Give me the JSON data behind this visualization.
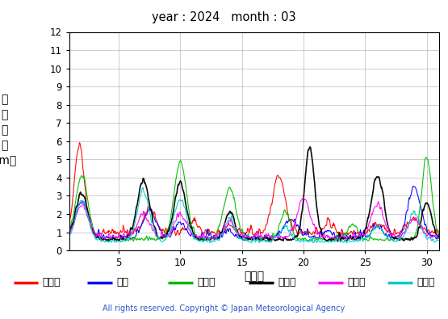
{
  "title": "year : 2024   month : 03",
  "xlabel": "（日）",
  "ylabel_chars": [
    "有",
    "義",
    "波",
    "高",
    "（m）"
  ],
  "xlim": [
    1,
    31
  ],
  "ylim": [
    0,
    12
  ],
  "yticks": [
    0,
    1,
    2,
    3,
    4,
    5,
    6,
    7,
    8,
    9,
    10,
    11,
    12
  ],
  "xticks": [
    5,
    10,
    15,
    20,
    25,
    30
  ],
  "copyright": "All rights reserved. Copyright © Japan Meteorological Agency",
  "series": [
    {
      "label": "上ノ国",
      "color": "#ff0000"
    },
    {
      "label": "唐桑",
      "color": "#0000ff"
    },
    {
      "label": "石廀崎",
      "color": "#00bb00"
    },
    {
      "label": "経ヶ岸",
      "color": "#000000"
    },
    {
      "label": "生月島",
      "color": "#ff00ff"
    },
    {
      "label": "屋久島",
      "color": "#00cccc"
    }
  ]
}
